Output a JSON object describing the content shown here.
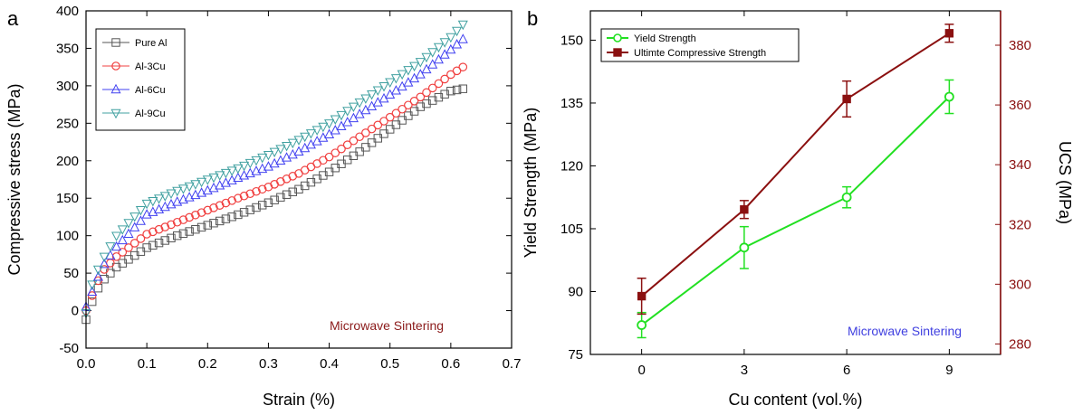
{
  "panels": {
    "a": "a",
    "b": "b"
  },
  "chart_data": [
    {
      "type": "scatter",
      "panel_label": "a",
      "xlabel": "Strain (%)",
      "ylabel": "Compressive stress (MPa)",
      "xlim": [
        0,
        0.7
      ],
      "ylim": [
        -50,
        400
      ],
      "xticks": [
        "0.0",
        "0.1",
        "0.2",
        "0.3",
        "0.4",
        "0.5",
        "0.6",
        "0.7"
      ],
      "yticks": [
        "-50",
        "0",
        "50",
        "100",
        "150",
        "200",
        "250",
        "300",
        "350",
        "400"
      ],
      "annotation": {
        "text": "Microwave Sintering",
        "color": "#8B1A1A"
      },
      "legend_position": "top-left",
      "series": [
        {
          "name": "Pure Al",
          "color": "#555555",
          "marker": "square",
          "points": [
            [
              0,
              -12
            ],
            [
              0.01,
              12
            ],
            [
              0.02,
              30
            ],
            [
              0.03,
              42
            ],
            [
              0.05,
              58
            ],
            [
              0.1,
              84
            ],
            [
              0.15,
              100
            ],
            [
              0.2,
              114
            ],
            [
              0.25,
              128
            ],
            [
              0.3,
              144
            ],
            [
              0.35,
              162
            ],
            [
              0.4,
              185
            ],
            [
              0.45,
              212
            ],
            [
              0.5,
              242
            ],
            [
              0.55,
              272
            ],
            [
              0.6,
              293
            ],
            [
              0.62,
              296
            ]
          ]
        },
        {
          "name": "Al-3Cu",
          "color": "#F04040",
          "marker": "circle",
          "points": [
            [
              0,
              0
            ],
            [
              0.01,
              20
            ],
            [
              0.02,
              40
            ],
            [
              0.03,
              55
            ],
            [
              0.05,
              72
            ],
            [
              0.1,
              102
            ],
            [
              0.15,
              118
            ],
            [
              0.2,
              134
            ],
            [
              0.25,
              150
            ],
            [
              0.3,
              165
            ],
            [
              0.35,
              183
            ],
            [
              0.4,
              205
            ],
            [
              0.45,
              232
            ],
            [
              0.5,
              258
            ],
            [
              0.55,
              285
            ],
            [
              0.6,
              315
            ],
            [
              0.62,
              325
            ]
          ]
        },
        {
          "name": "Al-6Cu",
          "color": "#4040F0",
          "marker": "triangle-up",
          "points": [
            [
              0,
              5
            ],
            [
              0.01,
              25
            ],
            [
              0.02,
              45
            ],
            [
              0.03,
              62
            ],
            [
              0.05,
              85
            ],
            [
              0.1,
              128
            ],
            [
              0.15,
              145
            ],
            [
              0.2,
              160
            ],
            [
              0.25,
              177
            ],
            [
              0.3,
              192
            ],
            [
              0.35,
              212
            ],
            [
              0.4,
              235
            ],
            [
              0.45,
              262
            ],
            [
              0.5,
              288
            ],
            [
              0.55,
              315
            ],
            [
              0.6,
              348
            ],
            [
              0.62,
              362
            ]
          ]
        },
        {
          "name": "Al-9Cu",
          "color": "#40A0A0",
          "marker": "triangle-down",
          "points": [
            [
              0,
              -3
            ],
            [
              0.01,
              35
            ],
            [
              0.02,
              55
            ],
            [
              0.03,
              72
            ],
            [
              0.05,
              100
            ],
            [
              0.1,
              143
            ],
            [
              0.15,
              160
            ],
            [
              0.2,
              175
            ],
            [
              0.25,
              190
            ],
            [
              0.3,
              208
            ],
            [
              0.35,
              228
            ],
            [
              0.4,
              250
            ],
            [
              0.45,
              278
            ],
            [
              0.5,
              305
            ],
            [
              0.55,
              332
            ],
            [
              0.6,
              365
            ],
            [
              0.62,
              382
            ]
          ]
        }
      ]
    },
    {
      "type": "line",
      "panel_label": "b",
      "xlabel": "Cu content (vol.%)",
      "ylabel_left": "Yield Strength (MPa)",
      "ylabel_right": "UCS (MPa)",
      "x": [
        0,
        3,
        6,
        9
      ],
      "xticks": [
        "0",
        "3",
        "6",
        "9"
      ],
      "xlim": [
        -1.5,
        10.5
      ],
      "ylim_left": [
        75,
        157
      ],
      "ylim_right": [
        276.5,
        391.5
      ],
      "yticks_left": [
        "75",
        "90",
        "105",
        "120",
        "135",
        "150"
      ],
      "yticks_right": [
        "280",
        "300",
        "320",
        "340",
        "360",
        "380"
      ],
      "annotation": {
        "text": "Microwave Sintering",
        "color": "#4040E0"
      },
      "legend_position": "top-left",
      "series": [
        {
          "name": "Yield Strength",
          "axis": "left",
          "color": "#22E022",
          "marker": "circle",
          "values": [
            82,
            100.5,
            112.5,
            136.5
          ],
          "errors": [
            3,
            5,
            2.5,
            4
          ]
        },
        {
          "name": "Ultimte Compressive Strength",
          "axis": "right",
          "color": "#8B1010",
          "marker": "filled-square",
          "values": [
            296,
            325,
            362,
            384
          ],
          "errors": [
            6,
            3,
            6,
            3
          ]
        }
      ]
    }
  ]
}
